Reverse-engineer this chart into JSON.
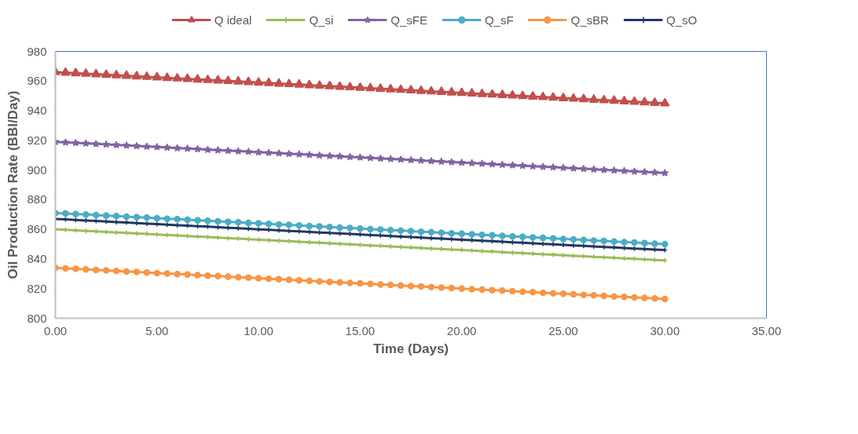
{
  "chart_data": {
    "type": "line",
    "xlabel": "Time (Days)",
    "ylabel": "Oil Production Rate (BBl/Day)",
    "x": [
      0,
      0.5,
      1,
      1.5,
      2,
      2.5,
      3,
      3.5,
      4,
      4.5,
      5,
      5.5,
      6,
      6.5,
      7,
      7.5,
      8,
      8.5,
      9,
      9.5,
      10,
      10.5,
      11,
      11.5,
      12,
      12.5,
      13,
      13.5,
      14,
      14.5,
      15,
      15.5,
      16,
      16.5,
      17,
      17.5,
      18,
      18.5,
      19,
      19.5,
      20,
      20.5,
      21,
      21.5,
      22,
      22.5,
      23,
      23.5,
      24,
      24.5,
      25,
      25.5,
      26,
      26.5,
      27,
      27.5,
      28,
      28.5,
      29,
      29.5,
      30
    ],
    "xlim": [
      0,
      35
    ],
    "xticks": [
      {
        "value": 0,
        "label": "0.00"
      },
      {
        "value": 5,
        "label": "5.00"
      },
      {
        "value": 10,
        "label": "10.00"
      },
      {
        "value": 15,
        "label": "15.00"
      },
      {
        "value": 20,
        "label": "20.00"
      },
      {
        "value": 25,
        "label": "25.00"
      },
      {
        "value": 30,
        "label": "30.00"
      },
      {
        "value": 35,
        "label": "35.00"
      }
    ],
    "ylim": [
      800,
      980
    ],
    "yticks": [
      800,
      820,
      840,
      860,
      880,
      900,
      920,
      940,
      960,
      980
    ],
    "grid": false,
    "legend": "top",
    "line_style": "solid",
    "series": [
      {
        "name": "Q ideal",
        "color": "#c0504d",
        "marker": "triangle",
        "values": [
          966,
          965.65,
          965.3,
          964.95,
          964.6,
          964.25,
          963.9,
          963.55,
          963.2,
          962.85,
          962.5,
          962.15,
          961.8,
          961.45,
          961.1,
          960.75,
          960.4,
          960.05,
          959.7,
          959.35,
          959,
          958.65,
          958.3,
          957.95,
          957.6,
          957.25,
          956.9,
          956.55,
          956.2,
          955.85,
          955.5,
          955.15,
          954.8,
          954.45,
          954.1,
          953.75,
          953.4,
          953.05,
          952.7,
          952.35,
          952,
          951.65,
          951.3,
          950.95,
          950.6,
          950.25,
          949.9,
          949.55,
          949.2,
          948.85,
          948.5,
          948.15,
          947.8,
          947.45,
          947.1,
          946.75,
          946.4,
          946.05,
          945.7,
          945.35,
          945
        ]
      },
      {
        "name": "Q_si",
        "color": "#9bbb59",
        "marker": "cross",
        "values": [
          860,
          859.65,
          859.3,
          858.95,
          858.6,
          858.25,
          857.9,
          857.55,
          857.2,
          856.85,
          856.5,
          856.15,
          855.8,
          855.45,
          855.1,
          854.75,
          854.4,
          854.05,
          853.7,
          853.35,
          853,
          852.65,
          852.3,
          851.95,
          851.6,
          851.25,
          850.9,
          850.55,
          850.2,
          849.85,
          849.5,
          849.15,
          848.8,
          848.45,
          848.1,
          847.75,
          847.4,
          847.05,
          846.7,
          846.35,
          846,
          845.65,
          845.3,
          844.95,
          844.6,
          844.25,
          843.9,
          843.55,
          843.2,
          842.85,
          842.5,
          842.15,
          841.8,
          841.45,
          841.1,
          840.75,
          840.4,
          840.05,
          839.7,
          839.35,
          839
        ]
      },
      {
        "name": "Q_sFE",
        "color": "#8064a2",
        "marker": "star",
        "values": [
          919,
          918.65,
          918.3,
          917.95,
          917.6,
          917.25,
          916.9,
          916.55,
          916.2,
          915.85,
          915.5,
          915.15,
          914.8,
          914.45,
          914.1,
          913.75,
          913.4,
          913.05,
          912.7,
          912.35,
          912,
          911.65,
          911.3,
          910.95,
          910.6,
          910.25,
          909.9,
          909.55,
          909.2,
          908.85,
          908.5,
          908.15,
          907.8,
          907.45,
          907.1,
          906.75,
          906.4,
          906.05,
          905.7,
          905.35,
          905,
          904.65,
          904.3,
          903.95,
          903.6,
          903.25,
          902.9,
          902.55,
          902.2,
          901.85,
          901.5,
          901.15,
          900.8,
          900.45,
          900.1,
          899.75,
          899.4,
          899.05,
          898.7,
          898.35,
          898
        ]
      },
      {
        "name": "Q_sF",
        "color": "#4bacc6",
        "marker": "circle",
        "values": [
          871,
          870.65,
          870.3,
          869.95,
          869.6,
          869.25,
          868.9,
          868.55,
          868.2,
          867.85,
          867.5,
          867.15,
          866.8,
          866.45,
          866.1,
          865.75,
          865.4,
          865.05,
          864.7,
          864.35,
          864,
          863.65,
          863.3,
          862.95,
          862.6,
          862.25,
          861.9,
          861.55,
          861.2,
          860.85,
          860.5,
          860.15,
          859.8,
          859.45,
          859.1,
          858.75,
          858.4,
          858.05,
          857.7,
          857.35,
          857,
          856.65,
          856.3,
          855.95,
          855.6,
          855.25,
          854.9,
          854.55,
          854.2,
          853.85,
          853.5,
          853.15,
          852.8,
          852.45,
          852.1,
          851.75,
          851.4,
          851.05,
          850.7,
          850.35,
          850
        ]
      },
      {
        "name": "Q_sBR",
        "color": "#f79646",
        "marker": "circle",
        "values": [
          834,
          833.65,
          833.3,
          832.95,
          832.6,
          832.25,
          831.9,
          831.55,
          831.2,
          830.85,
          830.5,
          830.15,
          829.8,
          829.45,
          829.1,
          828.75,
          828.4,
          828.05,
          827.7,
          827.35,
          827,
          826.65,
          826.3,
          825.95,
          825.6,
          825.25,
          824.9,
          824.55,
          824.2,
          823.85,
          823.5,
          823.15,
          822.8,
          822.45,
          822.1,
          821.75,
          821.4,
          821.05,
          820.7,
          820.35,
          820,
          819.65,
          819.3,
          818.95,
          818.6,
          818.25,
          817.9,
          817.55,
          817.2,
          816.85,
          816.5,
          816.15,
          815.8,
          815.45,
          815.1,
          814.75,
          814.4,
          814.05,
          813.7,
          813.35,
          813
        ]
      },
      {
        "name": "Q_sO",
        "color": "#1f3864",
        "marker": "cross",
        "values": [
          867,
          866.65,
          866.3,
          865.95,
          865.6,
          865.25,
          864.9,
          864.55,
          864.2,
          863.85,
          863.5,
          863.15,
          862.8,
          862.45,
          862.1,
          861.75,
          861.4,
          861.05,
          860.7,
          860.35,
          860,
          859.65,
          859.3,
          858.95,
          858.6,
          858.25,
          857.9,
          857.55,
          857.2,
          856.85,
          856.5,
          856.15,
          855.8,
          855.45,
          855.1,
          854.75,
          854.4,
          854.05,
          853.7,
          853.35,
          853,
          852.65,
          852.3,
          851.95,
          851.6,
          851.25,
          850.9,
          850.55,
          850.2,
          849.85,
          849.5,
          849.15,
          848.8,
          848.45,
          848.1,
          847.75,
          847.4,
          847.05,
          846.7,
          846.35,
          846
        ]
      }
    ]
  }
}
